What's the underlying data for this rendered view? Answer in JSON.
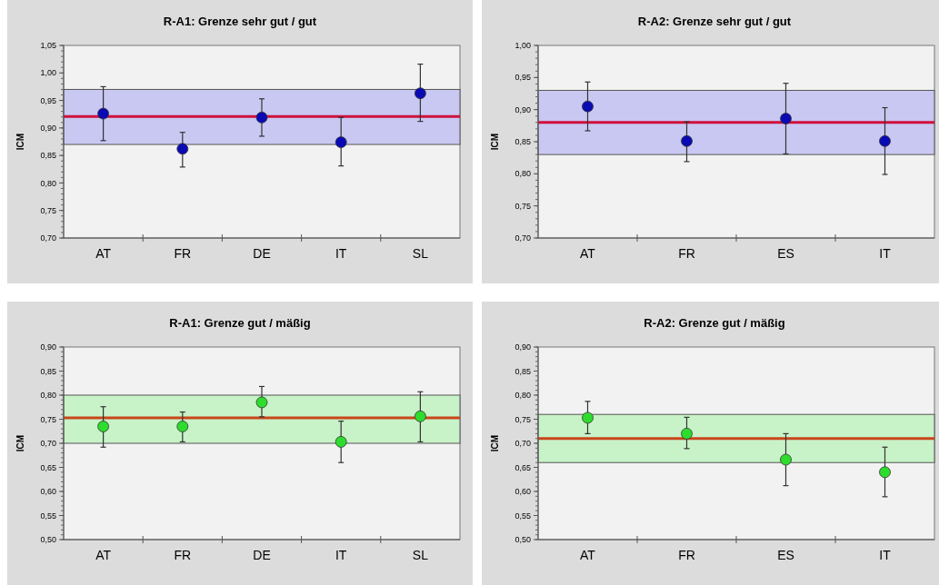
{
  "chart_data": [
    {
      "type": "scatter",
      "title": "R-A1:  Grenze sehr gut / gut",
      "ylabel": "ICM",
      "categories": [
        "AT",
        "FR",
        "DE",
        "IT",
        "SL"
      ],
      "series": [
        {
          "color": "#0a0ab4",
          "values": [
            0.926,
            0.862,
            0.919,
            0.874,
            0.963
          ],
          "errors": [
            [
              0.877,
              0.975
            ],
            [
              0.829,
              0.892
            ],
            [
              0.885,
              0.953
            ],
            [
              0.831,
              0.919
            ],
            [
              0.912,
              1.016
            ]
          ]
        }
      ],
      "ylim": [
        0.7,
        1.05
      ],
      "yticks": [
        {
          "value": 0.7,
          "label": "0,70"
        },
        {
          "value": 0.75,
          "label": "0,75"
        },
        {
          "value": 0.8,
          "label": "0,80"
        },
        {
          "value": 0.85,
          "label": "0,85"
        },
        {
          "value": 0.9,
          "label": "0,90"
        },
        {
          "value": 0.95,
          "label": "0,95"
        },
        {
          "value": 1.0,
          "label": "1,00"
        },
        {
          "value": 1.05,
          "label": "1,05"
        }
      ],
      "ref_lines": [
        {
          "axis": "y",
          "value": 0.921,
          "color": "#d0103c"
        }
      ],
      "bands": [
        {
          "axis": "y",
          "from": 0.87,
          "to": 0.97,
          "color": "#c8c8f2"
        }
      ],
      "marker": "circle",
      "grid": false
    },
    {
      "type": "scatter",
      "title": "R-A2: Grenze sehr gut / gut",
      "ylabel": "ICM",
      "categories": [
        "AT",
        "FR",
        "ES",
        "IT"
      ],
      "series": [
        {
          "color": "#0a0ab4",
          "values": [
            0.905,
            0.851,
            0.886,
            0.851
          ],
          "errors": [
            [
              0.867,
              0.943
            ],
            [
              0.819,
              0.881
            ],
            [
              0.831,
              0.941
            ],
            [
              0.799,
              0.903
            ]
          ]
        }
      ],
      "ylim": [
        0.7,
        1.0
      ],
      "yticks": [
        {
          "value": 0.7,
          "label": "0,70"
        },
        {
          "value": 0.75,
          "label": "0,75"
        },
        {
          "value": 0.8,
          "label": "0,80"
        },
        {
          "value": 0.85,
          "label": "0,85"
        },
        {
          "value": 0.9,
          "label": "0,90"
        },
        {
          "value": 0.95,
          "label": "0,95"
        },
        {
          "value": 1.0,
          "label": "1,00"
        }
      ],
      "ref_lines": [
        {
          "axis": "y",
          "value": 0.88,
          "color": "#d0103c"
        }
      ],
      "bands": [
        {
          "axis": "y",
          "from": 0.83,
          "to": 0.93,
          "color": "#c8c8f2"
        }
      ],
      "marker": "circle",
      "grid": false
    },
    {
      "type": "scatter",
      "title": "R-A1: Grenze gut / mäßig",
      "ylabel": "ICM",
      "categories": [
        "AT",
        "FR",
        "DE",
        "IT",
        "SL"
      ],
      "series": [
        {
          "color": "#2edc2e",
          "values": [
            0.735,
            0.735,
            0.785,
            0.703,
            0.756
          ],
          "errors": [
            [
              0.692,
              0.776
            ],
            [
              0.703,
              0.765
            ],
            [
              0.755,
              0.818
            ],
            [
              0.66,
              0.746
            ],
            [
              0.703,
              0.807
            ]
          ]
        }
      ],
      "ylim": [
        0.5,
        0.9
      ],
      "yticks": [
        {
          "value": 0.5,
          "label": "0,50"
        },
        {
          "value": 0.55,
          "label": "0,55"
        },
        {
          "value": 0.6,
          "label": "0,60"
        },
        {
          "value": 0.65,
          "label": "0,65"
        },
        {
          "value": 0.7,
          "label": "0,70"
        },
        {
          "value": 0.75,
          "label": "0,75"
        },
        {
          "value": 0.8,
          "label": "0,80"
        },
        {
          "value": 0.85,
          "label": "0,85"
        },
        {
          "value": 0.9,
          "label": "0,90"
        }
      ],
      "ref_lines": [
        {
          "axis": "y",
          "value": 0.753,
          "color": "#c8461a"
        }
      ],
      "bands": [
        {
          "axis": "y",
          "from": 0.7,
          "to": 0.8,
          "color": "#c8f2c8"
        }
      ],
      "marker": "circle",
      "grid": false
    },
    {
      "type": "scatter",
      "title": "R-A2: Grenze gut / mäßig",
      "ylabel": "ICM",
      "categories": [
        "AT",
        "FR",
        "ES",
        "IT"
      ],
      "series": [
        {
          "color": "#2edc2e",
          "values": [
            0.753,
            0.72,
            0.666,
            0.64
          ],
          "errors": [
            [
              0.72,
              0.787
            ],
            [
              0.689,
              0.754
            ],
            [
              0.612,
              0.72
            ],
            [
              0.589,
              0.692
            ]
          ]
        }
      ],
      "ylim": [
        0.5,
        0.9
      ],
      "yticks": [
        {
          "value": 0.5,
          "label": "0,50"
        },
        {
          "value": 0.55,
          "label": "0,55"
        },
        {
          "value": 0.6,
          "label": "0,60"
        },
        {
          "value": 0.65,
          "label": "0,65"
        },
        {
          "value": 0.7,
          "label": "0,70"
        },
        {
          "value": 0.75,
          "label": "0,75"
        },
        {
          "value": 0.8,
          "label": "0,80"
        },
        {
          "value": 0.85,
          "label": "0,85"
        },
        {
          "value": 0.9,
          "label": "0,90"
        }
      ],
      "ref_lines": [
        {
          "axis": "y",
          "value": 0.71,
          "color": "#c8461a"
        }
      ],
      "bands": [
        {
          "axis": "y",
          "from": 0.66,
          "to": 0.76,
          "color": "#c8f2c8"
        }
      ],
      "marker": "circle",
      "grid": false
    }
  ]
}
